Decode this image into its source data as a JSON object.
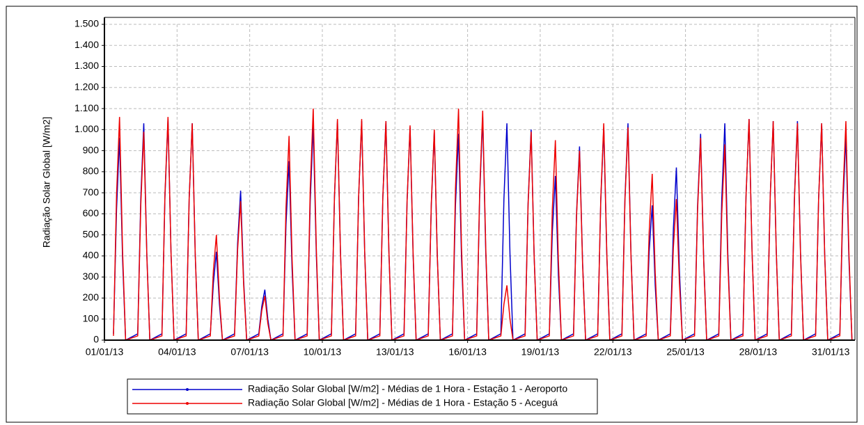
{
  "chart_data": {
    "type": "line",
    "ylabel": "Radiação Solar Global [W/m2]",
    "xlim": [
      1,
      32
    ],
    "ylim": [
      0,
      1500
    ],
    "xticks": [
      {
        "value": 1,
        "label": "01/01/13"
      },
      {
        "value": 4,
        "label": "04/01/13"
      },
      {
        "value": 7,
        "label": "07/01/13"
      },
      {
        "value": 10,
        "label": "10/01/13"
      },
      {
        "value": 13,
        "label": "13/01/13"
      },
      {
        "value": 16,
        "label": "16/01/13"
      },
      {
        "value": 19,
        "label": "19/01/13"
      },
      {
        "value": 22,
        "label": "22/01/13"
      },
      {
        "value": 25,
        "label": "25/01/13"
      },
      {
        "value": 28,
        "label": "28/01/13"
      },
      {
        "value": 31,
        "label": "31/01/13"
      }
    ],
    "yticks": [
      0,
      100,
      200,
      300,
      400,
      500,
      600,
      700,
      800,
      900,
      {
        "value": 1000,
        "label": "1.000"
      },
      {
        "value": 1100,
        "label": "1.100"
      },
      {
        "value": 1200,
        "label": "1.200"
      },
      {
        "value": 1300,
        "label": "1.300"
      },
      {
        "value": 1400,
        "label": "1.400"
      },
      {
        "value": 1500,
        "label": "1.500"
      }
    ],
    "grid": true,
    "legend": "bottom",
    "x": [
      1.375,
      1.5,
      1.625,
      1.75,
      1.875,
      2.375,
      2.5,
      2.625,
      2.75,
      2.875,
      3.375,
      3.5,
      3.625,
      3.75,
      3.875,
      4.375,
      4.5,
      4.625,
      4.75,
      4.875,
      5.375,
      5.5,
      5.625,
      5.75,
      5.875,
      6.375,
      6.5,
      6.625,
      6.75,
      6.875,
      7.375,
      7.5,
      7.625,
      7.75,
      7.875,
      8.375,
      8.5,
      8.625,
      8.75,
      8.875,
      9.375,
      9.5,
      9.625,
      9.75,
      9.875,
      10.375,
      10.5,
      10.625,
      10.75,
      10.875,
      11.375,
      11.5,
      11.625,
      11.75,
      11.875,
      12.375,
      12.5,
      12.625,
      12.75,
      12.875,
      13.375,
      13.5,
      13.625,
      13.75,
      13.875,
      14.375,
      14.5,
      14.625,
      14.75,
      14.875,
      15.375,
      15.5,
      15.625,
      15.75,
      15.875,
      16.375,
      16.5,
      16.625,
      16.75,
      16.875,
      17.375,
      17.5,
      17.625,
      17.75,
      17.875,
      18.375,
      18.5,
      18.625,
      18.75,
      18.875,
      19.375,
      19.5,
      19.625,
      19.75,
      19.875,
      20.375,
      20.5,
      20.625,
      20.75,
      20.875,
      21.375,
      21.5,
      21.625,
      21.75,
      21.875,
      22.375,
      22.5,
      22.625,
      22.75,
      22.875,
      23.375,
      23.5,
      23.625,
      23.75,
      23.875,
      24.375,
      24.5,
      24.625,
      24.75,
      24.875,
      25.375,
      25.5,
      25.625,
      25.75,
      25.875,
      26.375,
      26.5,
      26.625,
      26.75,
      26.875,
      27.375,
      27.5,
      27.625,
      27.75,
      27.875,
      28.375,
      28.5,
      28.625,
      28.75,
      28.875,
      29.375,
      29.5,
      29.625,
      29.75,
      29.875,
      30.375,
      30.5,
      30.625,
      30.75,
      30.875,
      31.375,
      31.5,
      31.625,
      31.75,
      31.875
    ],
    "series": [
      {
        "name": "Radiação Solar Global [W/m2] - Médias de 1 Hora - Estação 1 - Aeroporto",
        "color": "#0000cc",
        "values": [
          30,
          620,
          960,
          380,
          0,
          30,
          670,
          1030,
          410,
          0,
          30,
          680,
          1050,
          420,
          0,
          30,
          670,
          1030,
          410,
          0,
          30,
          270,
          420,
          170,
          0,
          30,
          460,
          710,
          280,
          0,
          30,
          160,
          240,
          100,
          0,
          30,
          550,
          850,
          340,
          0,
          30,
          660,
          1020,
          410,
          0,
          30,
          680,
          1040,
          420,
          0,
          30,
          680,
          1040,
          420,
          0,
          30,
          680,
          1040,
          420,
          0,
          30,
          660,
          1010,
          400,
          0,
          30,
          640,
          990,
          400,
          0,
          30,
          640,
          980,
          390,
          0,
          30,
          690,
          1060,
          420,
          0,
          30,
          670,
          1030,
          410,
          0,
          30,
          650,
          1000,
          400,
          0,
          30,
          510,
          780,
          310,
          0,
          30,
          600,
          920,
          370,
          0,
          30,
          660,
          1010,
          400,
          0,
          30,
          670,
          1030,
          410,
          0,
          30,
          420,
          640,
          260,
          0,
          30,
          530,
          820,
          330,
          0,
          30,
          640,
          980,
          390,
          0,
          30,
          670,
          1030,
          410,
          0,
          30,
          680,
          1050,
          420,
          0,
          30,
          680,
          1040,
          420,
          0,
          30,
          680,
          1040,
          420,
          0,
          30,
          670,
          1030,
          410,
          0,
          30,
          630,
          970,
          390,
          0
        ]
      },
      {
        "name": "Radiação Solar Global [W/m2] - Médias de 1 Hora - Estação 5 - Aceguá",
        "color": "#ee0000",
        "values": [
          20,
          690,
          1060,
          420,
          0,
          20,
          640,
          990,
          400,
          0,
          20,
          690,
          1060,
          420,
          0,
          20,
          670,
          1030,
          410,
          0,
          20,
          330,
          500,
          200,
          0,
          20,
          430,
          660,
          260,
          0,
          20,
          140,
          210,
          80,
          0,
          20,
          630,
          970,
          390,
          0,
          20,
          720,
          1100,
          440,
          0,
          20,
          680,
          1050,
          420,
          0,
          20,
          680,
          1050,
          420,
          0,
          20,
          680,
          1040,
          420,
          0,
          20,
          660,
          1020,
          410,
          0,
          20,
          650,
          1000,
          400,
          0,
          20,
          720,
          1100,
          440,
          0,
          20,
          710,
          1090,
          440,
          0,
          20,
          170,
          260,
          100,
          0,
          20,
          640,
          990,
          400,
          0,
          20,
          620,
          950,
          380,
          0,
          20,
          590,
          900,
          360,
          0,
          20,
          670,
          1030,
          410,
          0,
          20,
          660,
          1010,
          400,
          0,
          20,
          510,
          790,
          320,
          0,
          20,
          440,
          670,
          270,
          0,
          20,
          620,
          960,
          380,
          0,
          20,
          600,
          930,
          370,
          0,
          20,
          680,
          1050,
          420,
          0,
          20,
          680,
          1040,
          420,
          0,
          20,
          670,
          1030,
          410,
          0,
          20,
          670,
          1030,
          410,
          0,
          20,
          680,
          1040,
          420,
          0
        ]
      }
    ]
  }
}
